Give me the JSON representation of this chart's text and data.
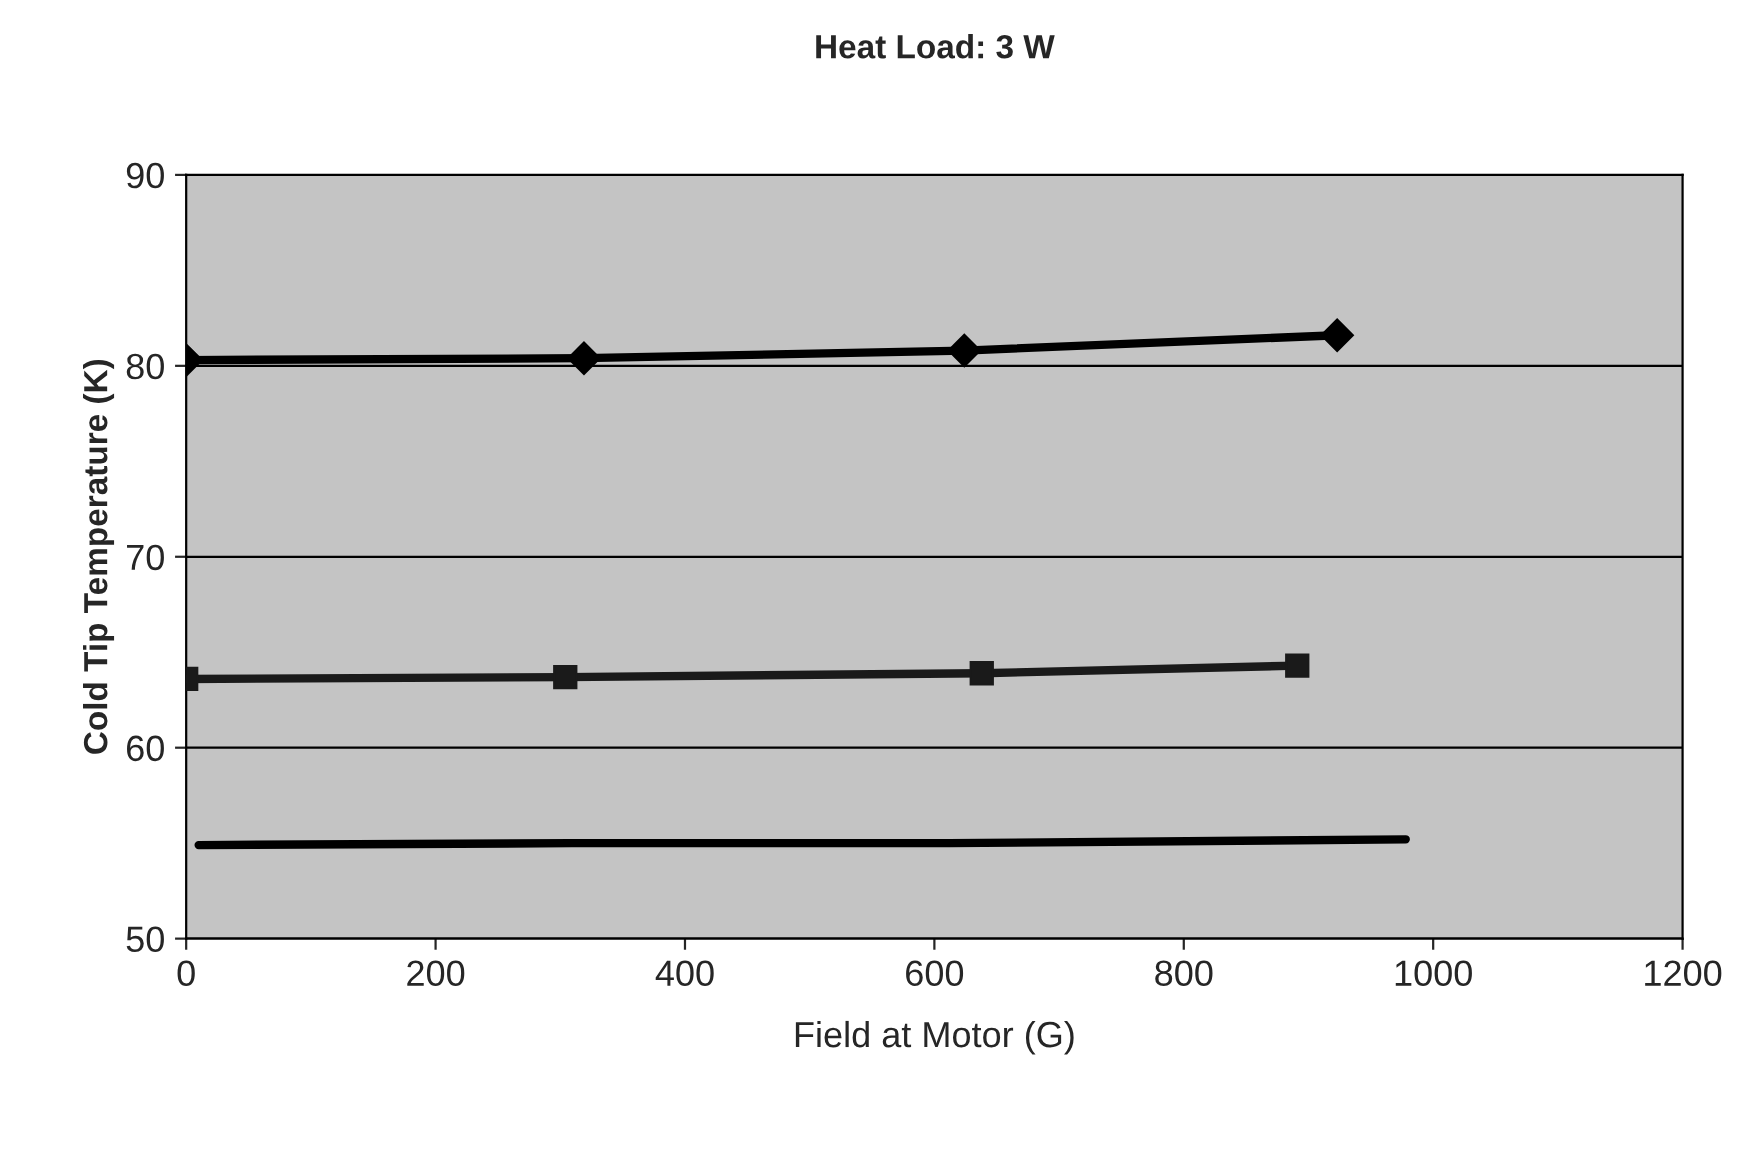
{
  "chart_data": {
    "type": "line",
    "title": "Heat Load: 3 W",
    "xlabel": "Field at Motor (G)",
    "ylabel": "Cold Tip Temperature (K)",
    "xlim": [
      0,
      1200
    ],
    "xticks": [
      0,
      200,
      400,
      600,
      800,
      1000,
      1200
    ],
    "ylim": [
      50,
      90
    ],
    "yticks": [
      50,
      60,
      70,
      80,
      90
    ],
    "grid": "y",
    "series": [
      {
        "color": "#000000",
        "marker": "diamond",
        "x": [
          0,
          319,
          624,
          923
        ],
        "values": [
          80.3,
          80.4,
          80.8,
          81.6
        ]
      },
      {
        "color": "#1a1a1a",
        "marker": "square",
        "x": [
          0,
          304,
          638,
          891
        ],
        "values": [
          63.6,
          63.7,
          63.9,
          64.3
        ]
      },
      {
        "color": "#000000",
        "marker": "none",
        "x": [
          10,
          309,
          612,
          978
        ],
        "values": [
          54.9,
          55.0,
          55.0,
          55.2
        ]
      }
    ]
  }
}
